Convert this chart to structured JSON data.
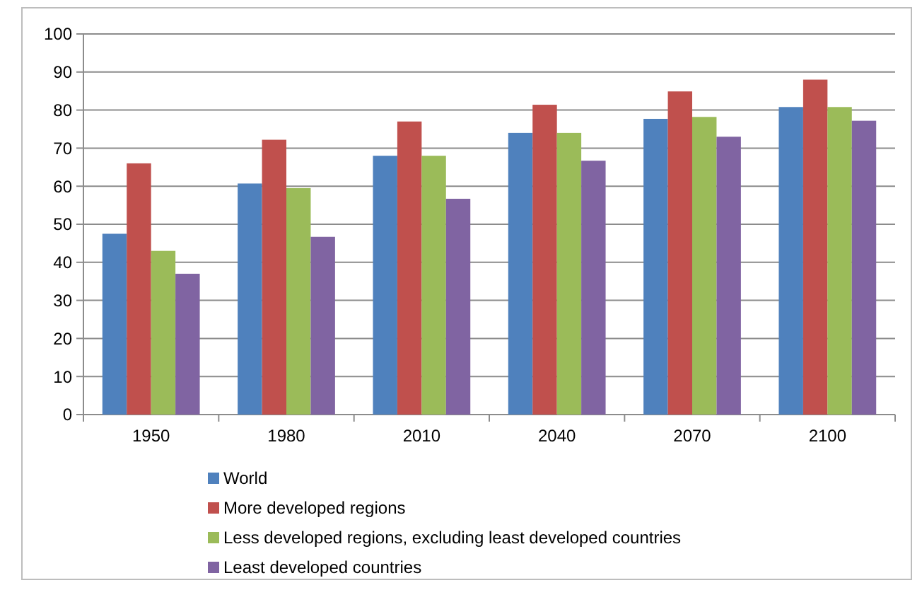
{
  "chart_data": {
    "type": "bar",
    "categories": [
      "1950",
      "1980",
      "2010",
      "2040",
      "2070",
      "2100"
    ],
    "series": [
      {
        "name": "World",
        "color": "#4f81bd",
        "values": [
          47.5,
          60.7,
          68,
          74,
          77.7,
          80.8
        ]
      },
      {
        "name": "More developed regions",
        "color": "#c0504d",
        "values": [
          66,
          72.2,
          77,
          81.4,
          84.9,
          88
        ]
      },
      {
        "name": "Less developed regions, excluding least developed countries",
        "color": "#9bbb59",
        "values": [
          43,
          59.5,
          68,
          74,
          78.2,
          80.8
        ]
      },
      {
        "name": "Least developed countries",
        "color": "#8064a2",
        "values": [
          37,
          46.7,
          56.7,
          66.7,
          73,
          77.2
        ]
      }
    ],
    "ylim": [
      0,
      100
    ],
    "yticks": [
      0,
      10,
      20,
      30,
      40,
      50,
      60,
      70,
      80,
      90,
      100
    ],
    "grid": "y",
    "legend": "bottom"
  }
}
